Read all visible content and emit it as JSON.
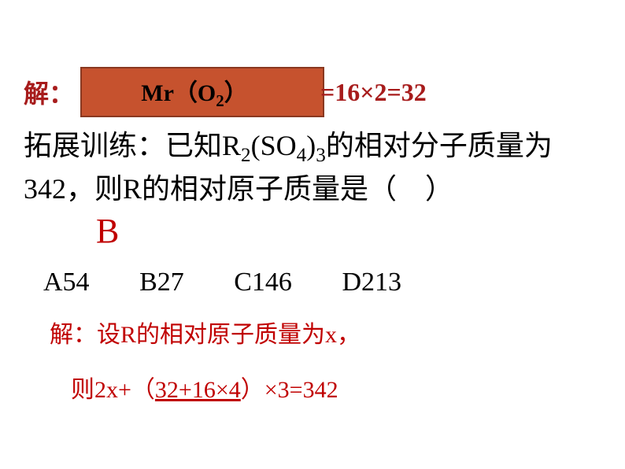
{
  "line1": {
    "jie": "解：",
    "mr_box_prefix": "Mr（O",
    "mr_box_sub": "2",
    "mr_box_suffix": "）",
    "result": "=16×2=32"
  },
  "question": {
    "prefix": "拓展训练：已知R",
    "sub1": "2",
    "mid1": "(SO",
    "sub2": "4",
    "mid2": ")",
    "sub3": "3",
    "suffix": "的相对分子质量为342，则R的相对原子质量是（　）"
  },
  "answer": "B",
  "options": {
    "a": "A54",
    "b": "B27",
    "c": "C146",
    "d": "D213"
  },
  "solution": {
    "line1": "解：设R的相对原子质量为x，",
    "line2_prefix": "则2x+（",
    "line2_underline": "32+16×4",
    "line2_suffix": "）×3=342"
  },
  "colors": {
    "dark_red": "#a71c1c",
    "orange_box": "#c6522e",
    "orange_border": "#8a3820",
    "bright_red": "#c00000",
    "black": "#000000",
    "white": "#ffffff"
  },
  "typography": {
    "title_fontsize": 32,
    "question_fontsize": 36,
    "answer_fontsize": 44,
    "options_fontsize": 34,
    "solution_fontsize": 30
  }
}
